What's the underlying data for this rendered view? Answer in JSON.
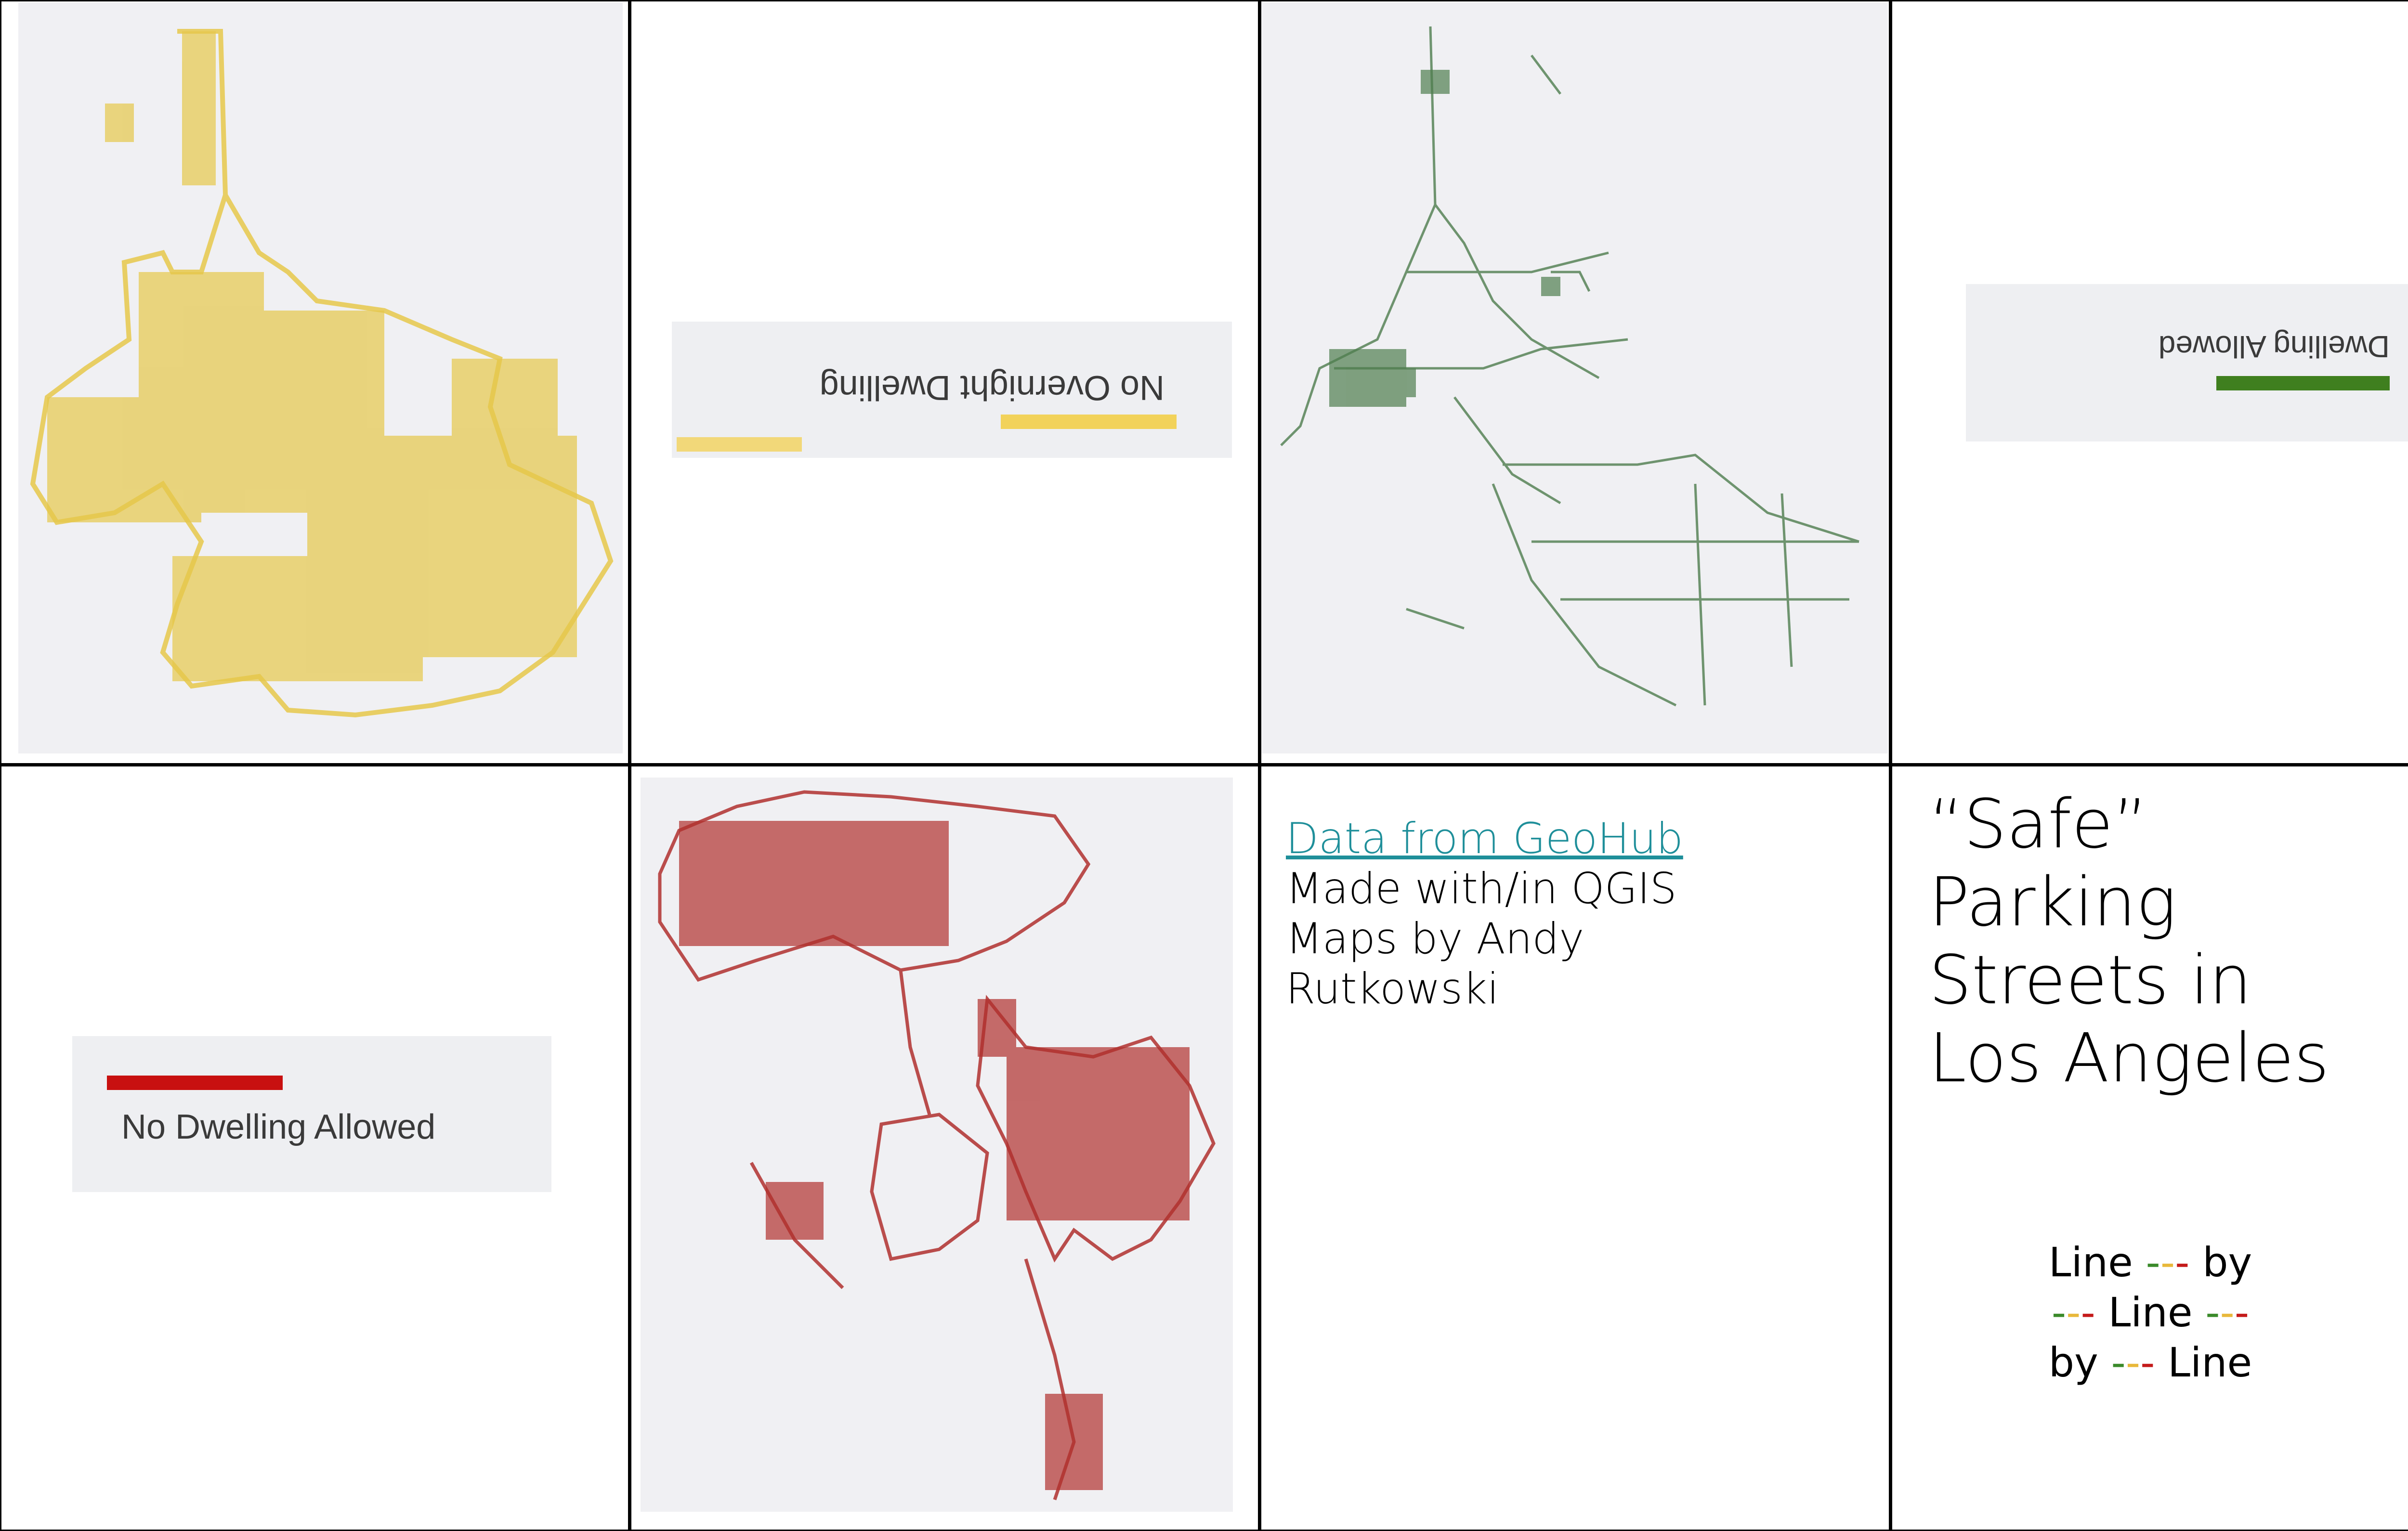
{
  "legend_no_overnight": {
    "label": "No Overnight Dwelling",
    "color": "#f2d25a"
  },
  "legend_dwelling_allowed": {
    "label": "Dwelling Allowed",
    "color": "#3f7f1f"
  },
  "legend_no_dwelling": {
    "label": "No Dwelling Allowed",
    "color": "#c81010"
  },
  "credits": {
    "link": "Data from GeoHub",
    "line2": "Made with/in QGIS",
    "line3": "Maps by Andy",
    "line4": "Rutkowski",
    "link_color": "#1f8f9a"
  },
  "title": {
    "line1": "“Safe”",
    "line2": "Parking",
    "line3": "Streets in",
    "line4": "Los Angeles"
  },
  "motto": {
    "row1": [
      "Line",
      "---",
      "by"
    ],
    "row2": [
      "---",
      "Line",
      "---"
    ],
    "row3": [
      "by",
      "---",
      "Line"
    ]
  },
  "map_colors": {
    "yellow": "#e6c84a",
    "green": "#4e7d4e",
    "red": "#b0302e"
  }
}
